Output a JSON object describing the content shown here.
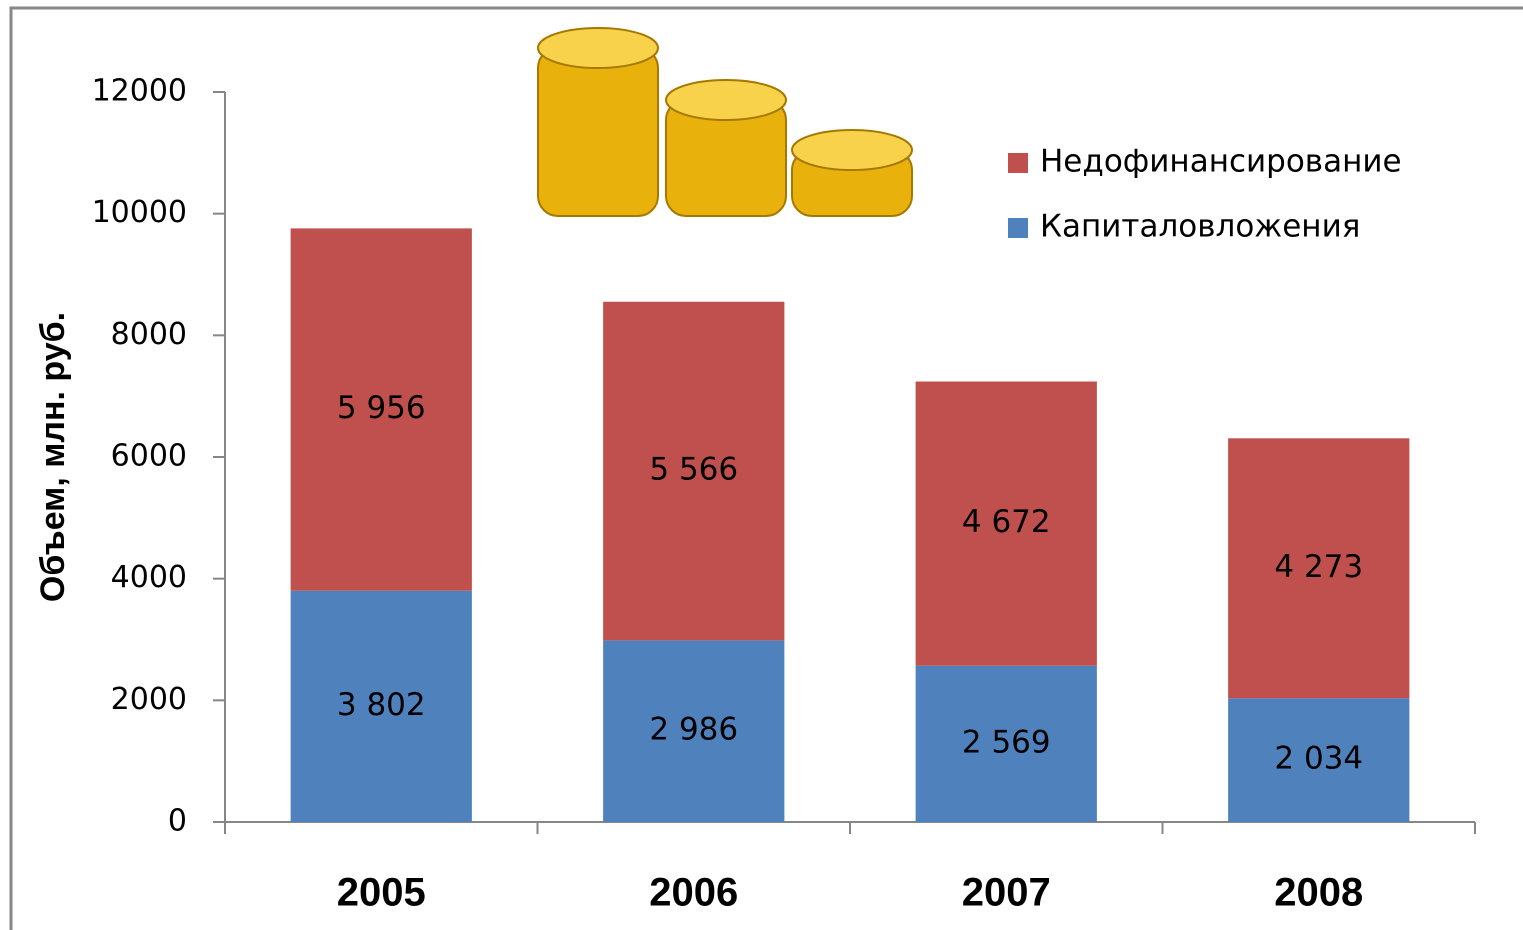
{
  "chart_data": {
    "type": "stacked_bar",
    "y_label": "Объем, млн. руб.",
    "categories": [
      "2005",
      "2006",
      "2007",
      "2008"
    ],
    "series": [
      {
        "name": "Капиталовложения",
        "color": "#4f81bd",
        "values": [
          3802,
          2986,
          2569,
          2034
        ],
        "value_labels": [
          "3 802",
          "2 986",
          "2 569",
          "2 034"
        ]
      },
      {
        "name": "Недофинансирование",
        "color": "#c0504d",
        "values": [
          5956,
          5566,
          4672,
          4273
        ],
        "value_labels": [
          "5 956",
          "5 566",
          "4 672",
          "4 273"
        ]
      }
    ],
    "ylim": [
      0,
      12000
    ],
    "yticks": [
      0,
      2000,
      4000,
      6000,
      8000,
      10000,
      12000
    ],
    "legend": "upper right"
  }
}
